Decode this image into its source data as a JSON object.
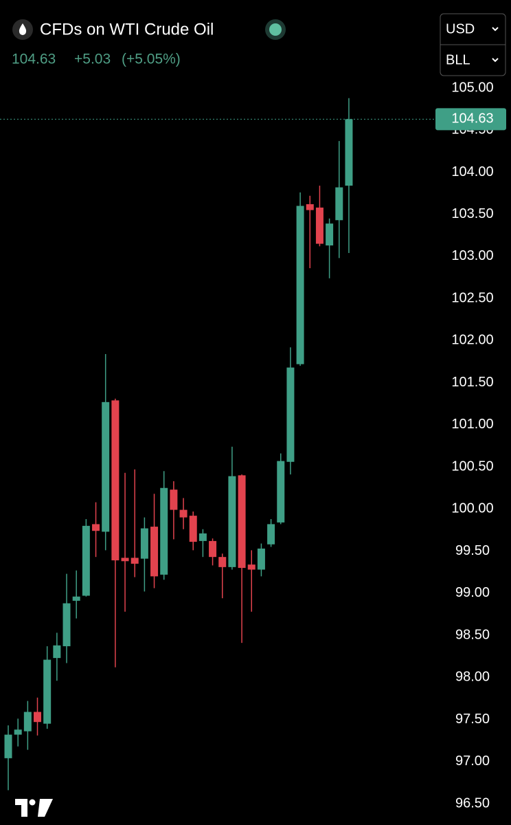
{
  "header": {
    "title": "CFDs on WTI Crude Oil",
    "change": "+5.03",
    "change_pct": "(+5.05%)"
  },
  "controls": {
    "currency": "USD",
    "unit": "BLL"
  },
  "chart_data": {
    "type": "candlestick",
    "up_color": "#3f9f86",
    "down_color": "#e2434e",
    "last_price": 104.63,
    "open": [
      97.04,
      97.32,
      97.36,
      97.59,
      97.45,
      98.23,
      98.37,
      98.91,
      98.97,
      99.82,
      99.73,
      101.29,
      99.42,
      99.42,
      99.41,
      99.79,
      99.22,
      100.23,
      99.99,
      99.92,
      99.62,
      99.62,
      99.43,
      99.31,
      100.4,
      99.34,
      99.28,
      99.58,
      99.84,
      100.56,
      101.72,
      103.62,
      103.58,
      103.13,
      103.43,
      103.84
    ],
    "high": [
      97.43,
      97.51,
      97.72,
      97.76,
      98.37,
      98.53,
      99.23,
      99.27,
      99.88,
      100.08,
      101.84,
      101.31,
      100.43,
      100.47,
      99.9,
      100.18,
      100.45,
      100.33,
      100.13,
      99.97,
      99.76,
      99.65,
      99.47,
      100.74,
      100.41,
      99.51,
      99.59,
      99.88,
      100.66,
      101.92,
      103.76,
      103.72,
      103.84,
      103.45,
      104.37,
      104.88
    ],
    "low": [
      96.66,
      97.18,
      97.14,
      97.31,
      97.39,
      97.96,
      98.17,
      98.7,
      98.96,
      99.43,
      99.51,
      98.12,
      98.78,
      99.19,
      99.02,
      99.06,
      99.16,
      99.64,
      99.76,
      99.51,
      99.43,
      99.33,
      98.94,
      99.28,
      98.41,
      98.78,
      99.2,
      99.55,
      99.82,
      100.41,
      101.7,
      102.86,
      103.12,
      102.74,
      102.98,
      103.04
    ],
    "close": [
      97.32,
      97.38,
      97.59,
      97.47,
      98.21,
      98.38,
      98.88,
      98.96,
      99.8,
      99.74,
      101.27,
      99.39,
      99.38,
      99.35,
      99.77,
      99.2,
      100.25,
      99.99,
      99.9,
      99.61,
      99.71,
      99.43,
      99.31,
      100.39,
      99.3,
      99.28,
      99.53,
      99.82,
      100.57,
      101.68,
      103.6,
      103.55,
      103.15,
      103.39,
      103.82,
      104.63
    ],
    "ylim": [
      96.5,
      105
    ],
    "yticks": [
      {
        "value": 96.5,
        "label": "96.50"
      },
      {
        "value": 97,
        "label": "97.00"
      },
      {
        "value": 97.5,
        "label": "97.50"
      },
      {
        "value": 98,
        "label": "98.00"
      },
      {
        "value": 98.5,
        "label": "98.50"
      },
      {
        "value": 99,
        "label": "99.00"
      },
      {
        "value": 99.5,
        "label": "99.50"
      },
      {
        "value": 100,
        "label": "100.00"
      },
      {
        "value": 100.5,
        "label": "100.50"
      },
      {
        "value": 101,
        "label": "101.00"
      },
      {
        "value": 101.5,
        "label": "101.50"
      },
      {
        "value": 102,
        "label": "102.00"
      },
      {
        "value": 102.5,
        "label": "102.50"
      },
      {
        "value": 103,
        "label": "103.00"
      },
      {
        "value": 103.5,
        "label": "103.50"
      },
      {
        "value": 104,
        "label": "104.00"
      },
      {
        "value": 104.5,
        "label": "104.50"
      },
      {
        "value": 105,
        "label": "105.00"
      }
    ]
  }
}
